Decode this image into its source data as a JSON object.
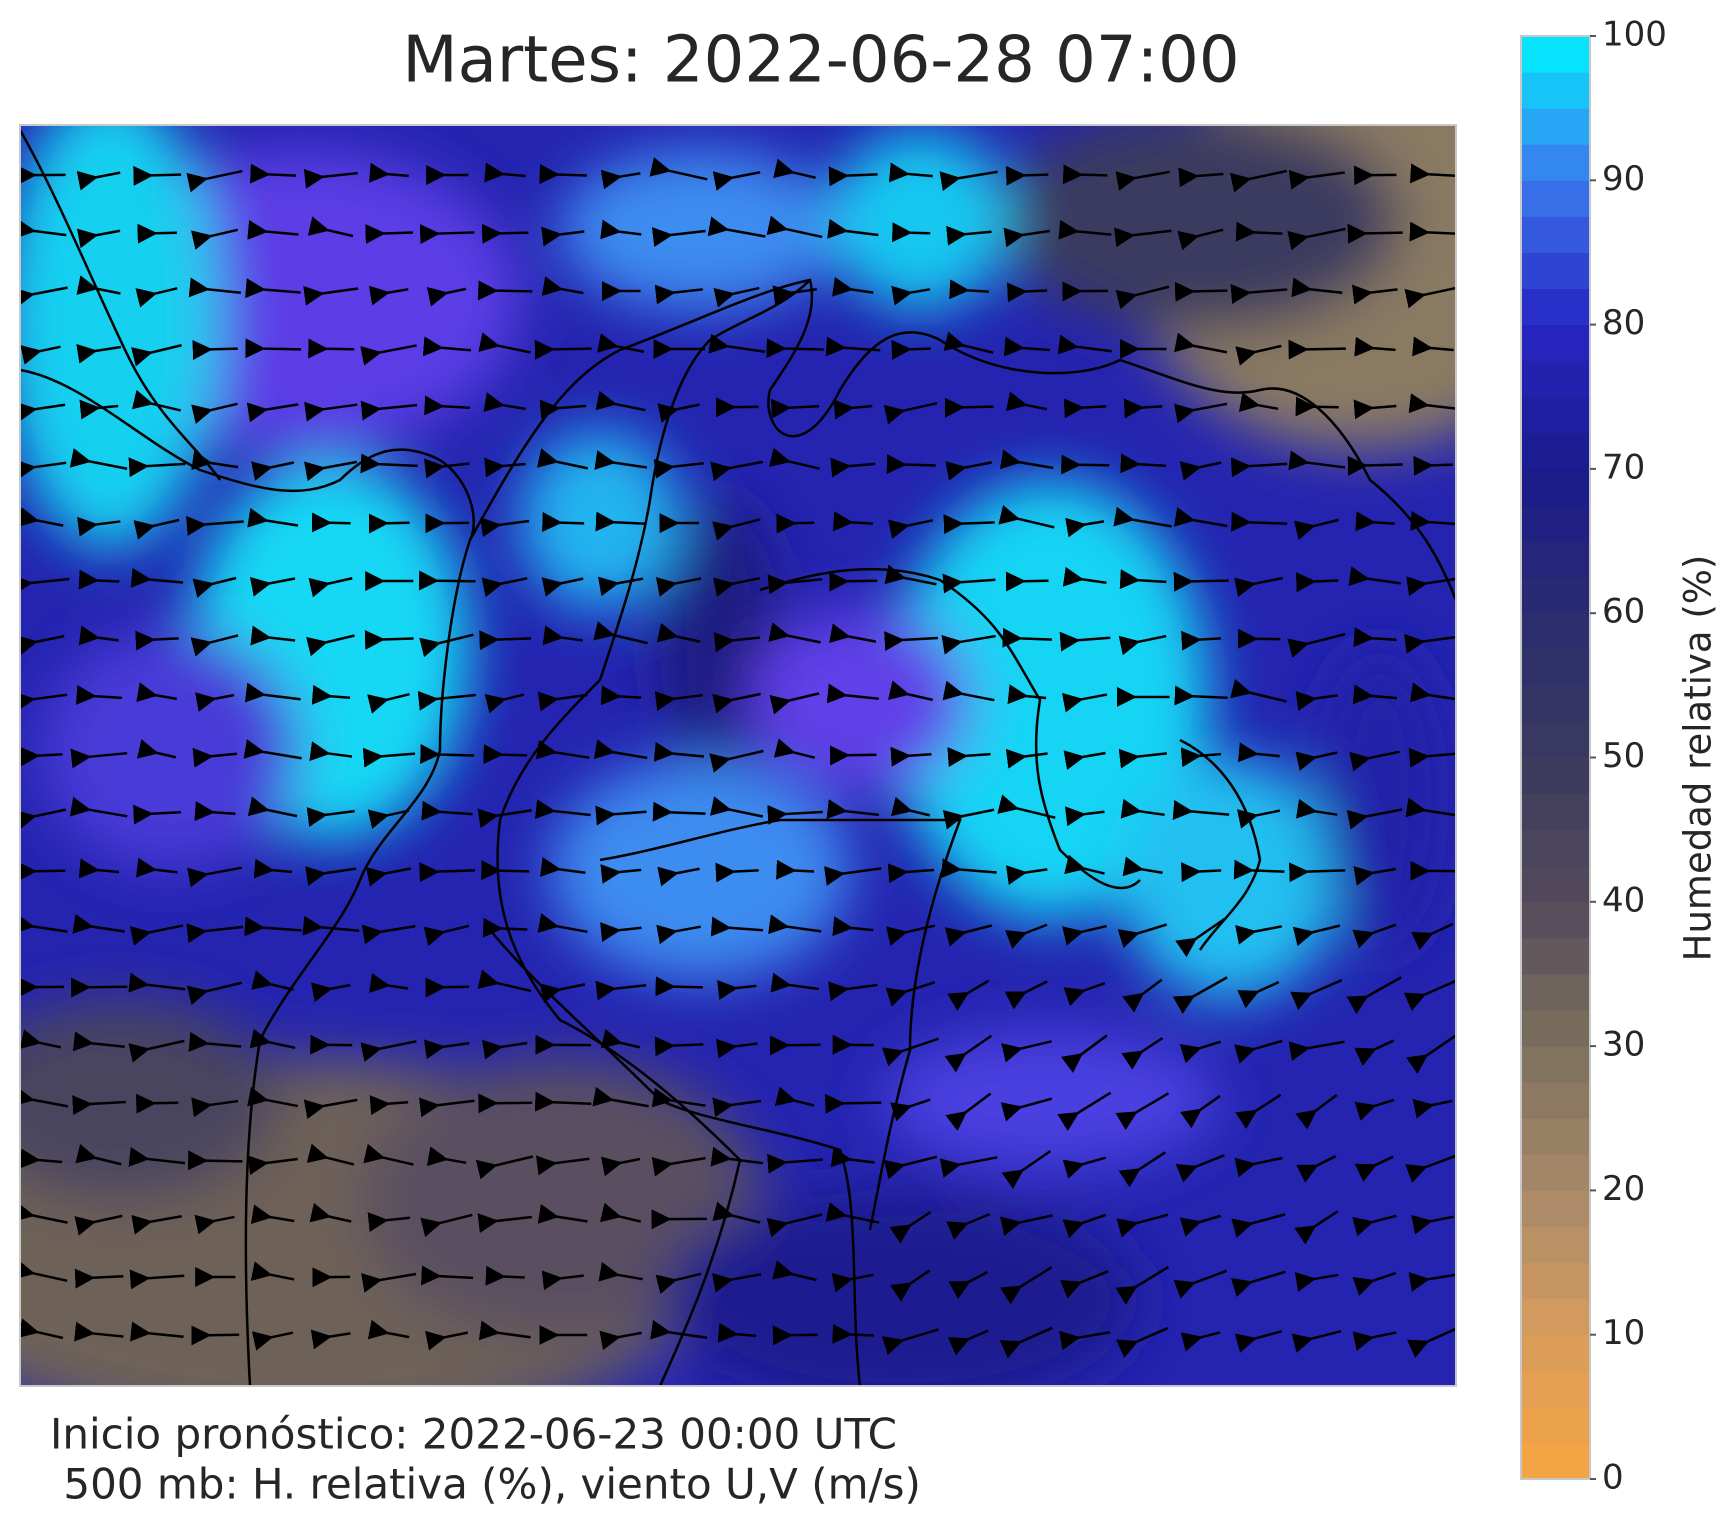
{
  "header": {
    "title": "Martes: 2022-06-28 07:00"
  },
  "colorbar": {
    "label": "Humedad relativa (%)",
    "lim": [
      0,
      100
    ],
    "ticks": [
      0,
      10,
      20,
      30,
      40,
      50,
      60,
      70,
      80,
      90,
      100
    ],
    "colors": [
      "#f7a540",
      "#d89c5c",
      "#a8896a",
      "#7c705c",
      "#544a5c",
      "#3b3a5e",
      "#2a2c70",
      "#1a1a8c",
      "#2626c4",
      "#3c78ee",
      "#00f2ff"
    ]
  },
  "footer": {
    "lines": [
      "Inicio pronóstico: 2022-06-23 00:00 UTC",
      " 500 mb: H. relativa (%), viento U,V (m/s)"
    ]
  }
}
